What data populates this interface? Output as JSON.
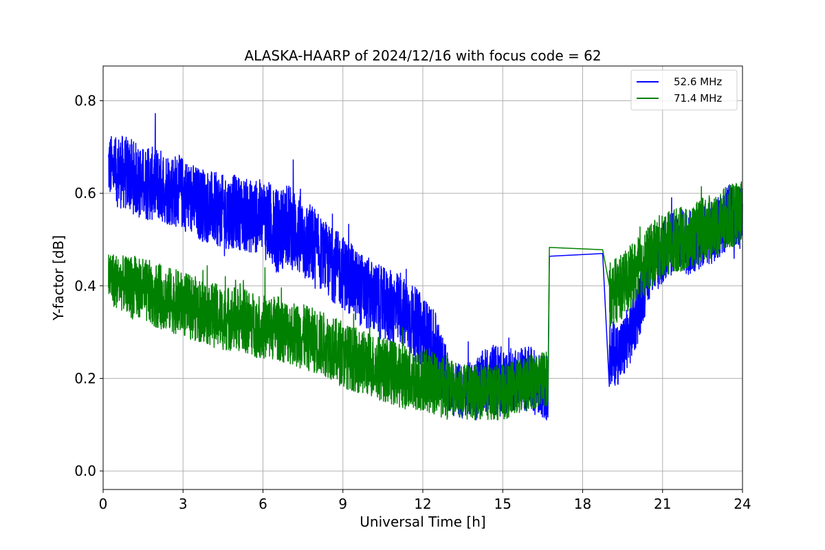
{
  "chart_data": {
    "type": "line",
    "title": "ALASKA-HAARP of 2024/12/16 with focus code = 62",
    "xlabel": "Universal Time [h]",
    "ylabel": "Y-factor [dB]",
    "xlim": [
      0,
      24
    ],
    "ylim": [
      -0.04,
      0.875
    ],
    "xticks": [
      0,
      3,
      6,
      9,
      12,
      15,
      18,
      21,
      24
    ],
    "xtick_labels": [
      "0",
      "3",
      "6",
      "9",
      "12",
      "15",
      "18",
      "21",
      "24"
    ],
    "yticks": [
      0.0,
      0.2,
      0.4,
      0.6,
      0.8
    ],
    "ytick_labels": [
      "0.0",
      "0.2",
      "0.4",
      "0.6",
      "0.8"
    ],
    "grid": true,
    "legend_position": "top-right",
    "series": [
      {
        "name": "52.6 MHz",
        "color": "#0000ff",
        "x": [
          0.2,
          0.5,
          1,
          1.5,
          2,
          2.5,
          3,
          3.5,
          4,
          4.5,
          5,
          5.5,
          6,
          6.5,
          7,
          7.5,
          8,
          8.5,
          9,
          9.5,
          10,
          10.5,
          11,
          11.5,
          12,
          12.5,
          13,
          13.5,
          14,
          14.5,
          15,
          15.5,
          16,
          16.5,
          16.75,
          18.75,
          19,
          19.5,
          20,
          20.5,
          21,
          21.5,
          22,
          22.5,
          23,
          23.5,
          24
        ],
        "y": [
          0.66,
          0.65,
          0.64,
          0.62,
          0.62,
          0.61,
          0.6,
          0.58,
          0.57,
          0.56,
          0.56,
          0.55,
          0.55,
          0.52,
          0.53,
          0.5,
          0.48,
          0.45,
          0.43,
          0.4,
          0.38,
          0.36,
          0.35,
          0.33,
          0.3,
          0.26,
          0.18,
          0.17,
          0.18,
          0.2,
          0.19,
          0.2,
          0.2,
          0.18,
          0.464,
          0.47,
          0.25,
          0.26,
          0.33,
          0.44,
          0.47,
          0.5,
          0.49,
          0.51,
          0.52,
          0.55,
          0.55
        ],
        "spread": [
          0.07,
          0.08,
          0.08,
          0.08,
          0.08,
          0.08,
          0.08,
          0.08,
          0.08,
          0.08,
          0.08,
          0.08,
          0.09,
          0.09,
          0.09,
          0.09,
          0.08,
          0.08,
          0.08,
          0.08,
          0.08,
          0.08,
          0.08,
          0.08,
          0.08,
          0.07,
          0.06,
          0.06,
          0.07,
          0.08,
          0.07,
          0.07,
          0.07,
          0.07,
          0.0,
          0.0,
          0.07,
          0.07,
          0.07,
          0.07,
          0.07,
          0.07,
          0.07,
          0.07,
          0.07,
          0.07,
          0.07
        ]
      },
      {
        "name": "71.4 MHz",
        "color": "#008000",
        "x": [
          0.2,
          0.5,
          1,
          1.5,
          2,
          2.5,
          3,
          3.5,
          4,
          4.5,
          5,
          5.5,
          6,
          6.5,
          7,
          7.5,
          8,
          8.5,
          9,
          9.5,
          10,
          10.5,
          11,
          11.5,
          12,
          12.5,
          13,
          13.5,
          14,
          14.5,
          15,
          15.5,
          16,
          16.5,
          16.75,
          18.75,
          19,
          19.5,
          20,
          20.5,
          21,
          21.5,
          22,
          22.5,
          23,
          23.5,
          24
        ],
        "y": [
          0.42,
          0.41,
          0.4,
          0.39,
          0.38,
          0.37,
          0.36,
          0.35,
          0.34,
          0.33,
          0.33,
          0.32,
          0.31,
          0.31,
          0.3,
          0.29,
          0.28,
          0.27,
          0.25,
          0.24,
          0.23,
          0.22,
          0.21,
          0.2,
          0.2,
          0.19,
          0.18,
          0.17,
          0.17,
          0.17,
          0.17,
          0.18,
          0.19,
          0.2,
          0.483,
          0.478,
          0.38,
          0.4,
          0.43,
          0.46,
          0.49,
          0.5,
          0.5,
          0.52,
          0.53,
          0.55,
          0.56
        ],
        "spread": [
          0.06,
          0.06,
          0.07,
          0.07,
          0.07,
          0.07,
          0.07,
          0.07,
          0.07,
          0.07,
          0.07,
          0.07,
          0.07,
          0.07,
          0.07,
          0.07,
          0.07,
          0.07,
          0.07,
          0.07,
          0.07,
          0.07,
          0.07,
          0.07,
          0.07,
          0.07,
          0.06,
          0.06,
          0.06,
          0.06,
          0.06,
          0.06,
          0.06,
          0.07,
          0.0,
          0.0,
          0.07,
          0.07,
          0.07,
          0.07,
          0.07,
          0.07,
          0.07,
          0.07,
          0.07,
          0.07,
          0.07
        ]
      }
    ]
  }
}
